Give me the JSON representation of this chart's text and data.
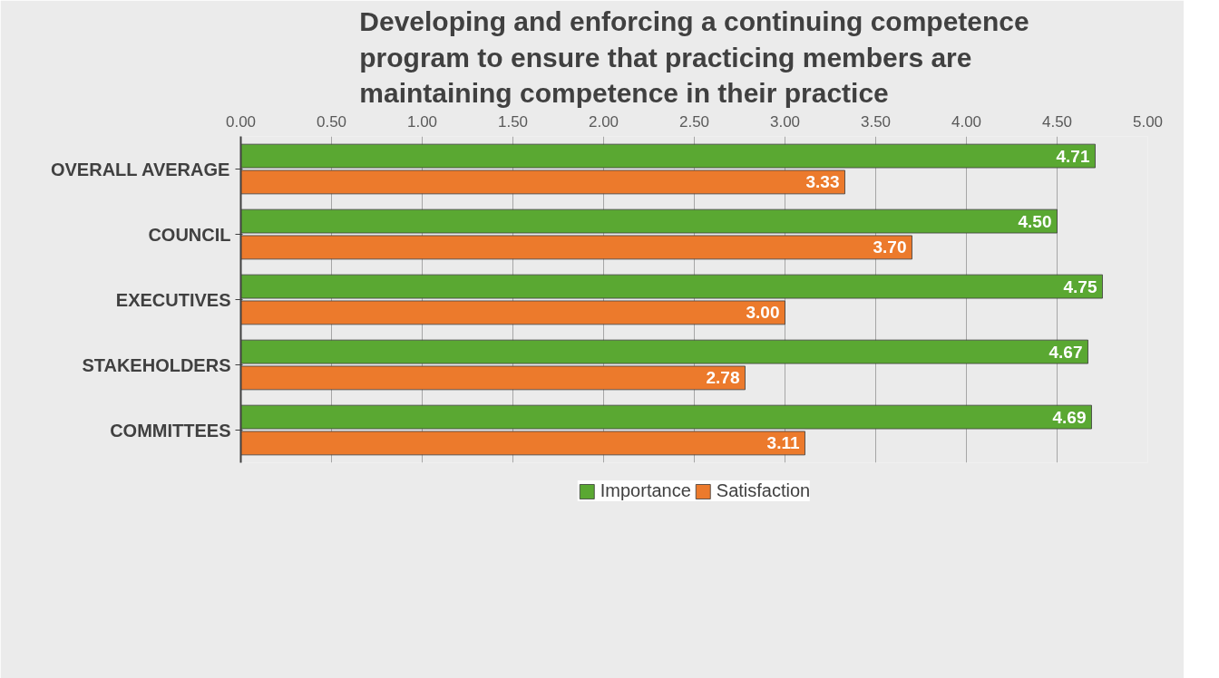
{
  "chart_data": {
    "type": "bar",
    "orientation": "horizontal",
    "title": "Developing and enforcing a continuing competence program to ensure that practicing members are maintaining competence in their practice",
    "categories": [
      "OVERALL AVERAGE",
      "COUNCIL",
      "EXECUTIVES",
      "STAKEHOLDERS",
      "COMMITTEES"
    ],
    "series": [
      {
        "name": "Importance",
        "color": "#5aa832",
        "values": [
          4.71,
          4.5,
          4.75,
          4.67,
          4.69
        ],
        "value_labels": [
          "4.71",
          "4.50",
          "4.75",
          "4.67",
          "4.69"
        ]
      },
      {
        "name": "Satisfaction",
        "color": "#ec7a2c",
        "values": [
          3.33,
          3.7,
          3.0,
          2.78,
          3.11
        ],
        "value_labels": [
          "3.33",
          "3.70",
          "3.00",
          "2.78",
          "3.11"
        ]
      }
    ],
    "xlim": [
      0,
      5
    ],
    "xticks": [
      {
        "value": 0,
        "label": "0.00"
      },
      {
        "value": 0.5,
        "label": "0.50"
      },
      {
        "value": 1,
        "label": "1.00"
      },
      {
        "value": 1.5,
        "label": "1.50"
      },
      {
        "value": 2,
        "label": "2.00"
      },
      {
        "value": 2.5,
        "label": "2.50"
      },
      {
        "value": 3,
        "label": "3.00"
      },
      {
        "value": 3.5,
        "label": "3.50"
      },
      {
        "value": 4,
        "label": "4.00"
      },
      {
        "value": 4.5,
        "label": "4.50"
      },
      {
        "value": 5,
        "label": "5.00"
      }
    ],
    "grid": "x",
    "legend": "bottom"
  }
}
